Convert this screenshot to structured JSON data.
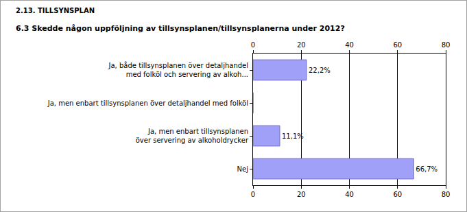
{
  "chart_data": {
    "type": "bar",
    "title": "2.13. TILLSYNSPLAN",
    "subtitle": "6.3 Skedde någon uppföljning av tillsynsplanen/tillsynsplanerna under 2012?",
    "categories": [
      "Ja, både tillsynsplanen över detaljhandel\nmed folköl och servering av alkoh...",
      "Ja, men enbart tillsynsplanen över detaljhandel med folköl",
      "Ja, men enbart tillsynsplanen\növer servering av alkoholdrycker",
      "Nej"
    ],
    "values": [
      22.2,
      0,
      11.1,
      66.7
    ],
    "value_labels": [
      "22,2%",
      null,
      "11,1%",
      "66,7%"
    ],
    "data_labels": true,
    "orientation": "horizontal",
    "color": "#a0a0f8",
    "xlim": [
      0,
      80
    ],
    "xticks": [
      0,
      20,
      40,
      60,
      80
    ],
    "grid": true
  }
}
